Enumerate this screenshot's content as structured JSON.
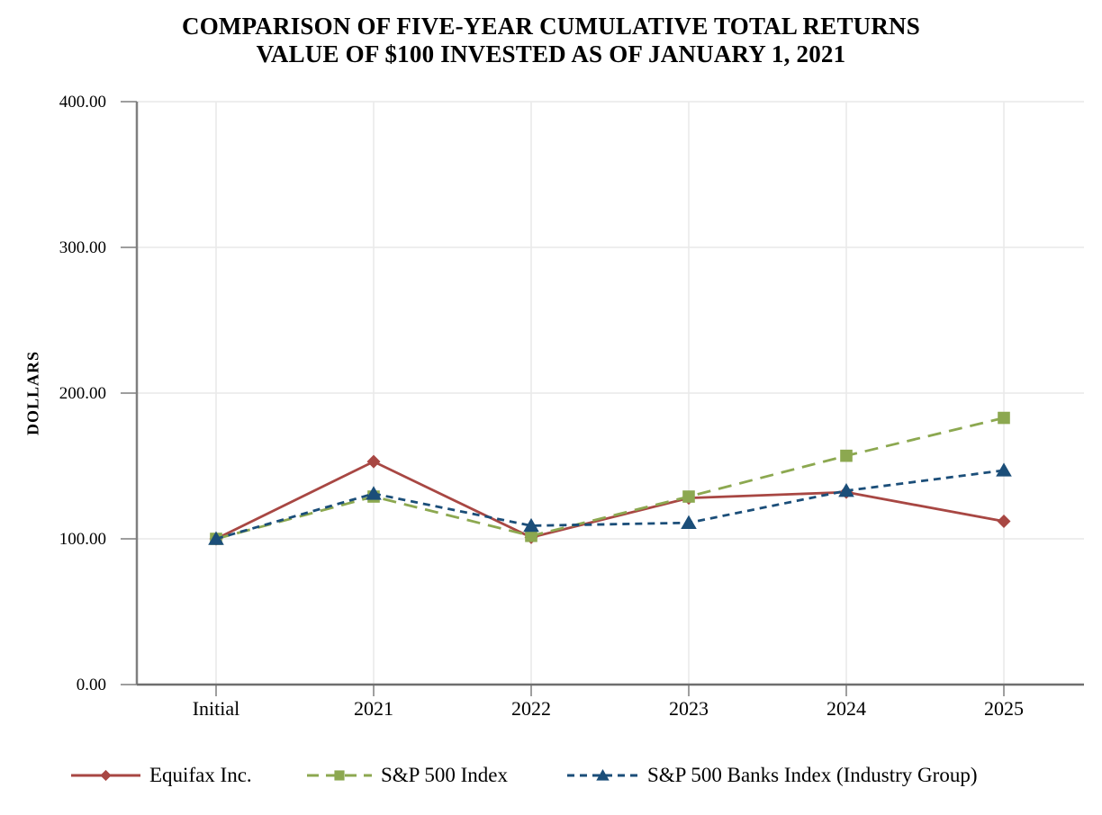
{
  "title": {
    "line1": "COMPARISON OF FIVE-YEAR CUMULATIVE TOTAL RETURNS",
    "line2": "VALUE OF $100 INVESTED AS OF JANUARY 1, 2021"
  },
  "chart_data": {
    "type": "line",
    "title": "COMPARISON OF FIVE-YEAR CUMULATIVE TOTAL RETURNS — VALUE OF $100 INVESTED AS OF JANUARY 1, 2021",
    "xlabel": "",
    "ylabel": "DOLLARS",
    "categories": [
      "Initial",
      "2021",
      "2022",
      "2023",
      "2024",
      "2025"
    ],
    "series": [
      {
        "name": "Equifax Inc.",
        "color": "#A84743",
        "marker": "diamond",
        "line_style": "solid",
        "values": [
          100,
          153,
          101,
          128,
          132,
          112
        ]
      },
      {
        "name": "S&P 500 Index",
        "color": "#8CA850",
        "marker": "square",
        "line_style": "long-dash",
        "values": [
          100,
          129,
          102,
          129,
          157,
          183
        ]
      },
      {
        "name": "S&P 500 Banks Index (Industry Group)",
        "color": "#1B4E79",
        "marker": "triangle",
        "line_style": "short-dash",
        "values": [
          100,
          131,
          109,
          111,
          133,
          147
        ]
      }
    ],
    "ylim": [
      0,
      400
    ],
    "y_ticks": [
      "0.00",
      "100.00",
      "200.00",
      "300.00",
      "400.00"
    ],
    "grid": true,
    "legend_position": "bottom",
    "colors": {
      "grid_line": "#E9E9E9",
      "axis_line": "#7F7F7F",
      "tick_line": "#7F7F7F",
      "text": "#000000",
      "background": "#FFFFFF"
    }
  }
}
